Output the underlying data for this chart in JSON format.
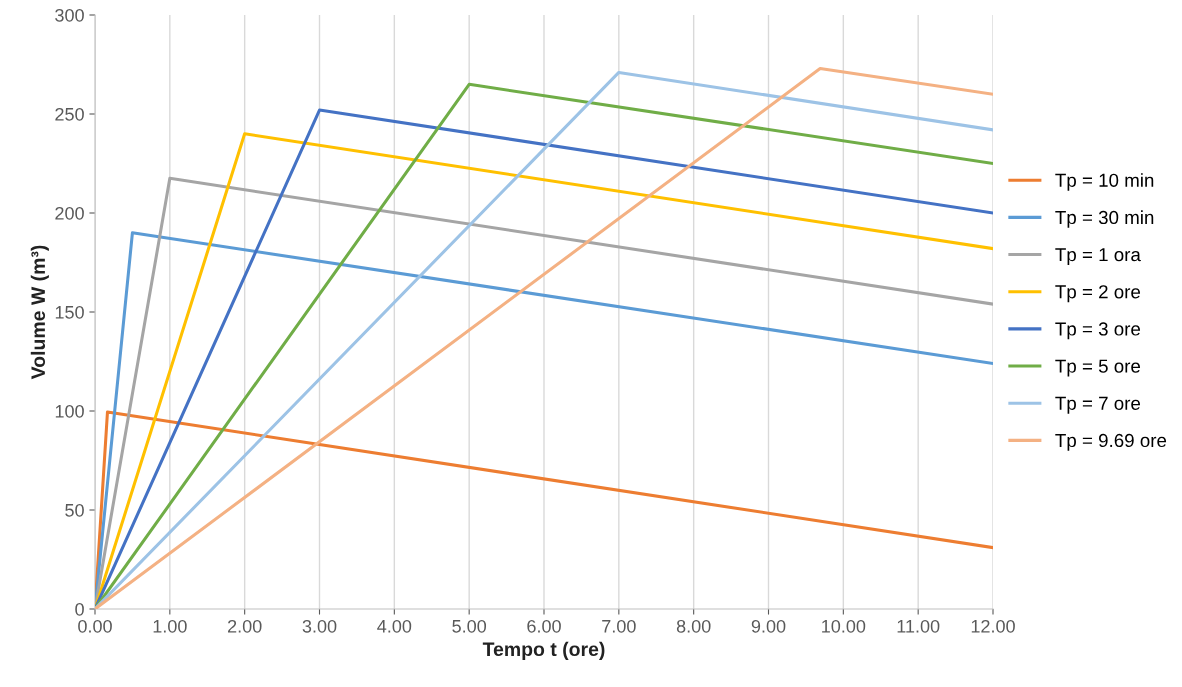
{
  "chart_data": {
    "type": "line",
    "xlabel": "Tempo t (ore)",
    "ylabel": "Volume W (m³)",
    "xlim": [
      0,
      12
    ],
    "ylim": [
      0,
      300
    ],
    "xticks": [
      {
        "value": 0,
        "label": "0.00"
      },
      {
        "value": 1,
        "label": "1.00"
      },
      {
        "value": 2,
        "label": "2.00"
      },
      {
        "value": 3,
        "label": "3.00"
      },
      {
        "value": 4,
        "label": "4.00"
      },
      {
        "value": 5,
        "label": "5.00"
      },
      {
        "value": 6,
        "label": "6.00"
      },
      {
        "value": 7,
        "label": "7.00"
      },
      {
        "value": 8,
        "label": "8.00"
      },
      {
        "value": 9,
        "label": "9.00"
      },
      {
        "value": 10,
        "label": "10.00"
      },
      {
        "value": 11,
        "label": "11.00"
      },
      {
        "value": 12,
        "label": "12.00"
      }
    ],
    "yticks": [
      0,
      50,
      100,
      150,
      200,
      250,
      300
    ],
    "grid": "x",
    "legend": "right",
    "marker": "none",
    "line_style": "solid",
    "series": [
      {
        "name": "Tp = 10 min",
        "color": "#ed7d31",
        "x": [
          0,
          0.1667,
          12
        ],
        "values": [
          0,
          99.5,
          31
        ]
      },
      {
        "name": "Tp = 30 min",
        "color": "#5b9bd5",
        "x": [
          0,
          0.5,
          12
        ],
        "values": [
          0,
          190,
          124
        ]
      },
      {
        "name": "Tp = 1 ora",
        "color": "#a5a5a5",
        "x": [
          0,
          1,
          12
        ],
        "values": [
          0,
          217.5,
          154
        ]
      },
      {
        "name": "Tp = 2 ore",
        "color": "#ffc000",
        "x": [
          0,
          2,
          12
        ],
        "values": [
          0,
          240,
          182
        ]
      },
      {
        "name": "Tp = 3 ore",
        "color": "#4472c4",
        "x": [
          0,
          3,
          12
        ],
        "values": [
          0,
          252,
          200
        ]
      },
      {
        "name": "Tp = 5 ore",
        "color": "#70ad47",
        "x": [
          0,
          5,
          12
        ],
        "values": [
          0,
          265,
          225
        ]
      },
      {
        "name": "Tp = 7 ore",
        "color": "#9dc3e6",
        "x": [
          0,
          7,
          12
        ],
        "values": [
          0,
          271,
          242
        ]
      },
      {
        "name": "Tp = 9.69 ore",
        "color": "#f4b183",
        "x": [
          0,
          9.69,
          12
        ],
        "values": [
          0,
          273,
          260
        ]
      }
    ]
  }
}
